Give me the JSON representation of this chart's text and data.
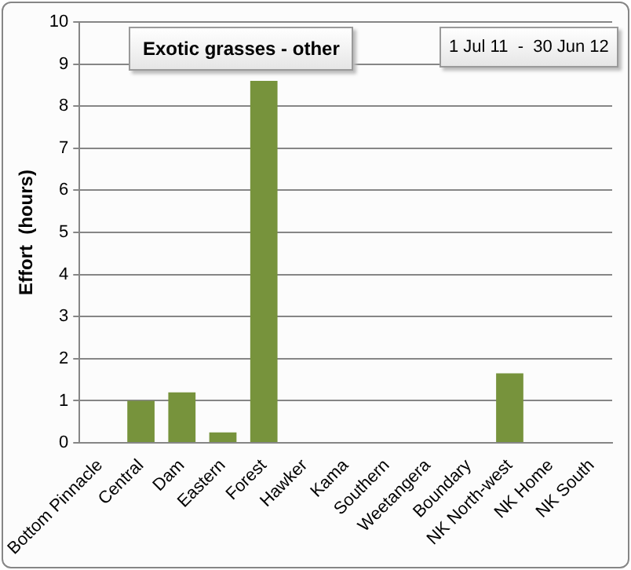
{
  "chart_data": {
    "type": "bar",
    "title": "Exotic grasses - other",
    "subtitle": "1 Jul 11  -  30 Jun 12",
    "ylabel": "Effort  (hours)",
    "categories": [
      "Bottom Pinnacle",
      "Central",
      "Dam",
      "Eastern",
      "Forest",
      "Hawker",
      "Kama",
      "Southern",
      "Weetangera",
      "Boundary",
      "NK North-west",
      "NK Home",
      "NK South"
    ],
    "values": [
      0,
      1,
      1.2,
      0.25,
      8.6,
      0,
      0,
      0,
      0,
      0,
      1.65,
      0,
      0
    ],
    "color": "#77933c",
    "ylim": [
      0,
      10
    ],
    "yticks": [
      0,
      1,
      2,
      3,
      4,
      5,
      6,
      7,
      8,
      9,
      10
    ],
    "grid": "y",
    "legend": false
  }
}
